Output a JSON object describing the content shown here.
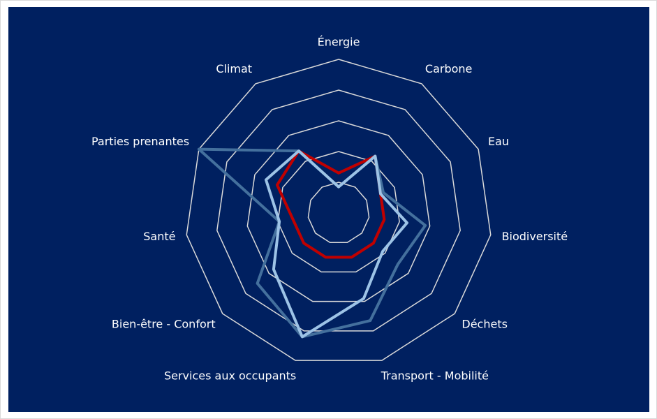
{
  "chart_data": {
    "type": "radar",
    "categories": [
      "Énergie",
      "Carbone",
      "Eau",
      "Biodiversité",
      "Déchets",
      "Transport - Mobilité",
      "Services aux occupants",
      "Bien-être - Confort",
      "Santé",
      "Parties prenantes",
      "Climat"
    ],
    "series": [
      {
        "color": "#c00000",
        "values": [
          1.3,
          2.2,
          1.5,
          1.5,
          1.5,
          1.5,
          1.5,
          1.5,
          1.5,
          2.2,
          2.4
        ]
      },
      {
        "color": "#44709d",
        "values": [
          0.85,
          2.2,
          1.6,
          2.85,
          2.55,
          3.65,
          4.2,
          3.5,
          1.95,
          5,
          2.4
        ]
      },
      {
        "color": "#9dc3e6",
        "values": [
          0.85,
          2.2,
          1.5,
          2.25,
          1.9,
          2.9,
          4.2,
          2.8,
          1.95,
          2.6,
          2.4
        ]
      }
    ],
    "ylim": [
      0,
      5
    ],
    "yticks": [
      1,
      2,
      3,
      4,
      5
    ],
    "grid": true
  }
}
